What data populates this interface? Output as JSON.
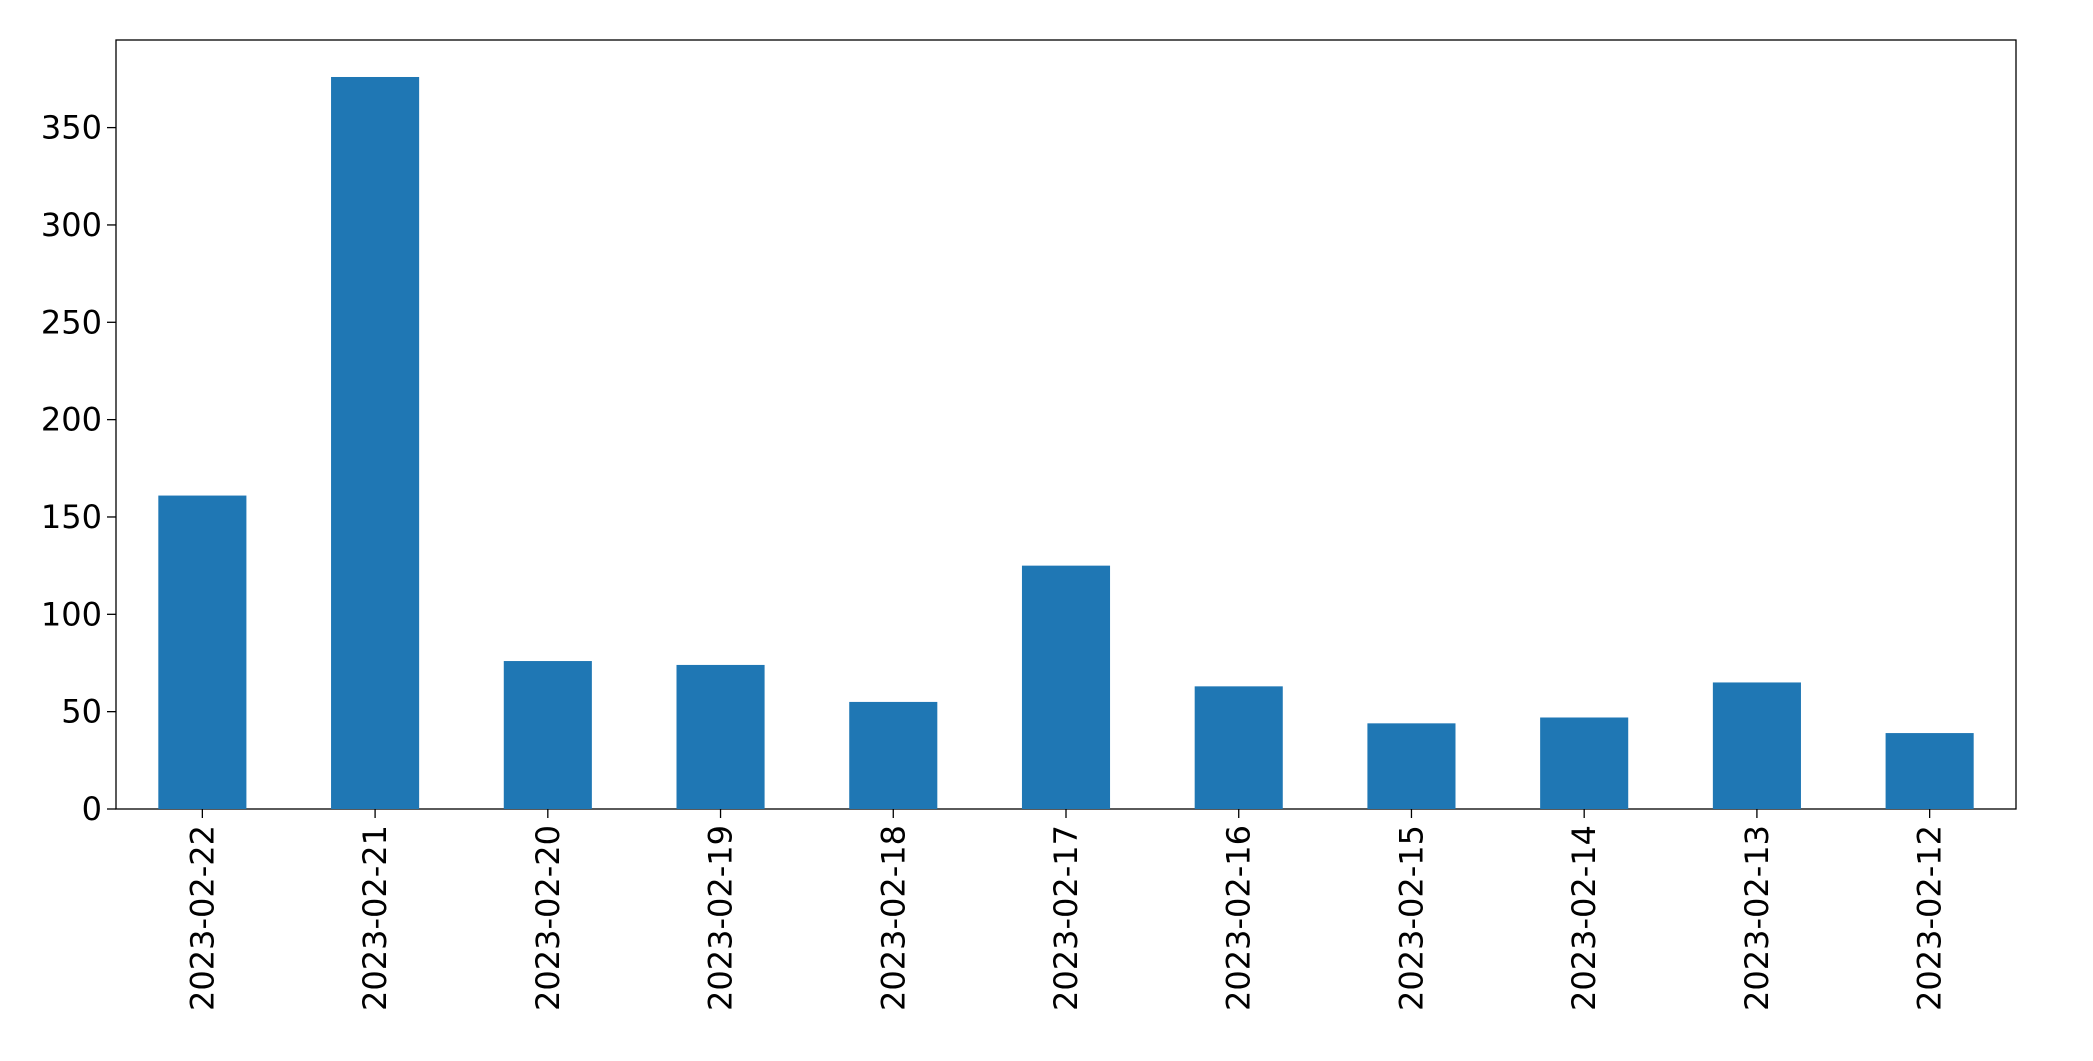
{
  "chart_data": {
    "type": "bar",
    "categories": [
      "2023-02-22",
      "2023-02-21",
      "2023-02-20",
      "2023-02-19",
      "2023-02-18",
      "2023-02-17",
      "2023-02-16",
      "2023-02-15",
      "2023-02-14",
      "2023-02-13",
      "2023-02-12"
    ],
    "values": [
      161,
      376,
      76,
      74,
      55,
      125,
      63,
      44,
      47,
      65,
      39
    ],
    "color": "#1f77b4",
    "ylim": [
      0,
      395
    ],
    "yticks": [
      0,
      50,
      100,
      150,
      200,
      250,
      300,
      350
    ],
    "grid": false
  }
}
